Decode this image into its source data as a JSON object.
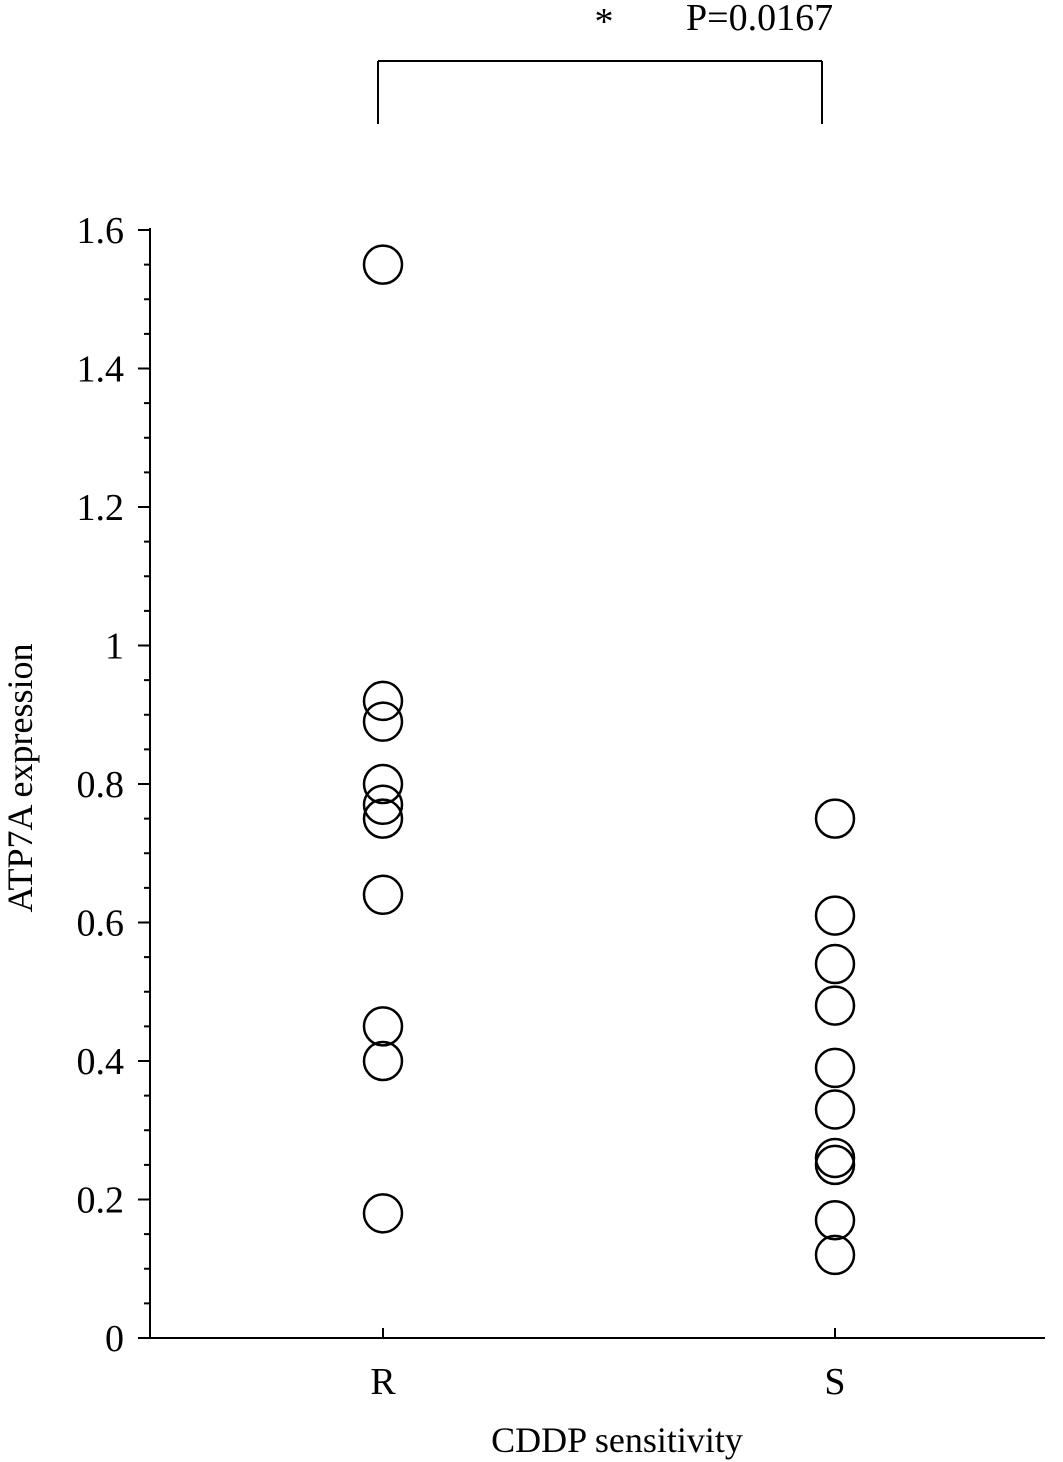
{
  "chart_data": {
    "type": "scatter",
    "xlabel": "CDDP sensitivity",
    "ylabel": "ATP7A expression",
    "categories": [
      "R",
      "S"
    ],
    "ylim": [
      0,
      1.6
    ],
    "yticks": [
      {
        "value": 0,
        "label": "0"
      },
      {
        "value": 0.2,
        "label": "0.2"
      },
      {
        "value": 0.4,
        "label": "0.4"
      },
      {
        "value": 0.6,
        "label": "0.6"
      },
      {
        "value": 0.8,
        "label": "0.8"
      },
      {
        "value": 1.0,
        "label": "1"
      },
      {
        "value": 1.2,
        "label": "1.2"
      },
      {
        "value": 1.4,
        "label": "1.4"
      },
      {
        "value": 1.6,
        "label": "1.6"
      }
    ],
    "minor_tick_step": 0.05,
    "grid": false,
    "series": [
      {
        "category": "R",
        "values": [
          1.55,
          0.92,
          0.89,
          0.8,
          0.77,
          0.75,
          0.64,
          0.45,
          0.4,
          0.18
        ]
      },
      {
        "category": "S",
        "values": [
          0.75,
          0.61,
          0.54,
          0.48,
          0.39,
          0.33,
          0.26,
          0.25,
          0.17,
          0.12
        ]
      }
    ],
    "annotation": {
      "symbol": "*",
      "text": "P=0.0167",
      "between": [
        "R",
        "S"
      ]
    }
  }
}
